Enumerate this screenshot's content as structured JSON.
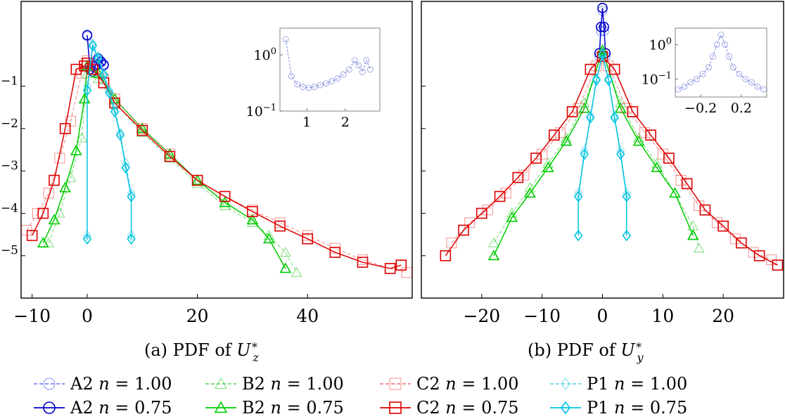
{
  "captions": {
    "a": "(a) PDF of U*z",
    "b": "(b) PDF of U*y"
  },
  "legend": [
    {
      "label": "A2 n = 1.00",
      "color": "#4455ee",
      "marker": "circle",
      "dashed": true
    },
    {
      "label": "B2 n = 1.00",
      "color": "#33cc33",
      "marker": "triangle",
      "dashed": true
    },
    {
      "label": "C2 n = 1.00",
      "color": "#ee5555",
      "marker": "square",
      "dashed": true
    },
    {
      "label": "P1 n = 1.00",
      "color": "#33c4e0",
      "marker": "diamond",
      "dashed": true
    },
    {
      "label": "A2 n = 0.75",
      "color": "#0000cc",
      "marker": "circle",
      "dashed": false
    },
    {
      "label": "B2 n = 0.75",
      "color": "#00cc00",
      "marker": "triangle",
      "dashed": false
    },
    {
      "label": "C2 n = 0.75",
      "color": "#dd0000",
      "marker": "square",
      "dashed": false
    },
    {
      "label": "P1 n = 0.75",
      "color": "#00c4e0",
      "marker": "diamond",
      "dashed": false
    }
  ],
  "chart_data": [
    {
      "type": "line",
      "title": "(a) PDF of U*z",
      "xlabel": "",
      "ylabel": "",
      "xlim": [
        -12,
        59
      ],
      "ylim": [
        1e-06,
        10
      ],
      "yscale": "log",
      "xticks": [
        -10,
        0,
        20,
        40
      ],
      "yticks": [
        1e-05,
        0.0001,
        0.001,
        0.01,
        0.1
      ],
      "ytick_labels": [
        "10^-5",
        "10^-4",
        "10^-3",
        "10^-2",
        "10^-1"
      ],
      "series": [
        {
          "name": "A2 n = 1.00",
          "x": [
            0,
            0.5,
            1,
            1.5,
            2,
            2.5,
            3
          ],
          "y": [
            1.5,
            0.3,
            0.28,
            0.32,
            0.4,
            0.35,
            0.3
          ]
        },
        {
          "name": "A2 n = 0.75",
          "x": [
            0,
            0.5,
            1,
            1.5,
            2,
            2.5,
            3
          ],
          "y": [
            1.6,
            0.25,
            0.22,
            0.3,
            0.45,
            0.38,
            0.32
          ]
        },
        {
          "name": "B2 n = 1.00",
          "x": [
            -7,
            -5,
            -3,
            -1,
            0,
            2,
            5,
            10,
            15,
            20,
            25,
            30,
            33,
            36,
            38
          ],
          "y": [
            2e-05,
            0.0001,
            0.0007,
            0.006,
            0.2,
            0.15,
            0.04,
            0.008,
            0.002,
            0.0005,
            0.00015,
            6e-05,
            3e-05,
            1.2e-05,
            4e-06
          ]
        },
        {
          "name": "B2 n = 0.75",
          "x": [
            -8,
            -6,
            -4,
            -2,
            -0.5,
            0,
            2,
            5,
            10,
            15,
            20,
            25,
            30,
            33,
            36
          ],
          "y": [
            2e-05,
            7e-05,
            0.0004,
            0.003,
            0.05,
            0.3,
            0.2,
            0.05,
            0.01,
            0.0025,
            0.0006,
            0.00018,
            7e-05,
            2.5e-05,
            5e-06
          ]
        },
        {
          "name": "C2 n = 1.00",
          "x": [
            -11,
            -9,
            -7,
            -5,
            -3,
            -1,
            0,
            1,
            3,
            5,
            10,
            15,
            20,
            25,
            30,
            35,
            40,
            45,
            50,
            55,
            58
          ],
          "y": [
            4e-05,
            0.0001,
            0.0003,
            0.002,
            0.015,
            0.2,
            0.4,
            0.3,
            0.15,
            0.05,
            0.01,
            0.0025,
            0.0006,
            0.00025,
            0.00012,
            6e-05,
            3e-05,
            1.5e-05,
            8e-06,
            5e-06,
            4e-06
          ]
        },
        {
          "name": "C2 n = 0.75",
          "x": [
            -10,
            -8,
            -6,
            -4,
            -2,
            -0.5,
            0,
            1,
            3,
            5,
            10,
            15,
            20,
            25,
            30,
            35,
            40,
            45,
            50,
            55,
            57
          ],
          "y": [
            3e-05,
            0.0001,
            0.0006,
            0.01,
            0.25,
            0.3,
            0.35,
            0.25,
            0.12,
            0.04,
            0.009,
            0.0022,
            0.0006,
            0.00025,
            0.00011,
            5e-05,
            2.5e-05,
            1.2e-05,
            7e-06,
            5e-06,
            6e-06
          ]
        },
        {
          "name": "P1 n = 1.00",
          "x": [
            0,
            0,
            1,
            2,
            3,
            4,
            5,
            6,
            7,
            8,
            8
          ],
          "y": [
            3e-05,
            0.1,
            1.0,
            0.5,
            0.2,
            0.08,
            0.03,
            0.008,
            0.0015,
            0.0003,
            3e-05
          ]
        },
        {
          "name": "P1 n = 0.75",
          "x": [
            0,
            0,
            1,
            2,
            3,
            4,
            5,
            6,
            7,
            8,
            8
          ],
          "y": [
            2.5e-05,
            0.08,
            0.9,
            0.45,
            0.18,
            0.07,
            0.025,
            0.007,
            0.0012,
            0.00025,
            2.5e-05
          ]
        }
      ],
      "inset": {
        "xlim": [
          0.3,
          2.9
        ],
        "ylim": [
          0.1,
          3
        ],
        "yscale": "log",
        "xticks": [
          1,
          2
        ],
        "yticks": [
          0.1,
          1
        ],
        "ytick_labels": [
          "10^-1",
          "10^0"
        ],
        "series": {
          "name": "A2",
          "x": [
            0.45,
            0.6,
            0.75,
            0.9,
            1.05,
            1.2,
            1.35,
            1.5,
            1.65,
            1.8,
            1.95,
            2.1,
            2.25,
            2.35,
            2.45,
            2.55,
            2.65
          ],
          "y": [
            1.9,
            0.42,
            0.3,
            0.27,
            0.26,
            0.27,
            0.29,
            0.31,
            0.34,
            0.38,
            0.45,
            0.55,
            0.8,
            0.65,
            0.5,
            0.8,
            0.55
          ]
        }
      }
    },
    {
      "type": "line",
      "title": "(b) PDF of U*y",
      "xlabel": "",
      "ylabel": "",
      "xlim": [
        -30,
        30
      ],
      "ylim": [
        1e-06,
        10
      ],
      "yscale": "log",
      "xticks": [
        -20,
        -10,
        0,
        10,
        20
      ],
      "yticks": [
        1e-05,
        0.0001,
        0.001,
        0.01,
        0.1
      ],
      "series": [
        {
          "name": "A2 n = 1.00",
          "x": [
            -0.5,
            -0.25,
            0,
            0.25,
            0.5
          ],
          "y": [
            0.5,
            2,
            6,
            2,
            0.5
          ]
        },
        {
          "name": "A2 n = 0.75",
          "x": [
            -0.5,
            -0.25,
            0,
            0.25,
            0.5
          ],
          "y": [
            0.6,
            2.5,
            7,
            2.5,
            0.6
          ]
        },
        {
          "name": "B2 n = 1.00",
          "x": [
            -18,
            -15,
            -12,
            -9,
            -6,
            -3,
            0,
            3,
            6,
            9,
            12,
            15,
            16
          ],
          "y": [
            2e-05,
            0.0001,
            0.0004,
            0.0015,
            0.006,
            0.04,
            0.6,
            0.04,
            0.006,
            0.0015,
            0.0003,
            5e-05,
            1.5e-05
          ]
        },
        {
          "name": "B2 n = 0.75",
          "x": [
            -18,
            -15,
            -12,
            -9,
            -6,
            -3,
            0,
            3,
            6,
            9,
            12,
            15
          ],
          "y": [
            1e-05,
            8e-05,
            0.0003,
            0.0012,
            0.005,
            0.03,
            0.7,
            0.03,
            0.005,
            0.0012,
            0.0003,
            3e-05
          ]
        },
        {
          "name": "C2 n = 1.00",
          "x": [
            -25,
            -22,
            -19,
            -16,
            -13,
            -10,
            -7,
            -4,
            -1,
            0,
            1,
            4,
            7,
            10,
            13,
            16,
            19,
            22,
            25,
            28
          ],
          "y": [
            2e-05,
            6e-05,
            0.00012,
            0.0003,
            0.0008,
            0.0025,
            0.008,
            0.03,
            0.3,
            0.5,
            0.3,
            0.03,
            0.008,
            0.0025,
            0.0006,
            0.00015,
            6e-05,
            2.5e-05,
            1.2e-05,
            8e-06
          ]
        },
        {
          "name": "C2 n = 0.75",
          "x": [
            -26,
            -23,
            -20,
            -17,
            -14,
            -11,
            -8,
            -5,
            -2,
            0,
            2,
            5,
            8,
            11,
            14,
            17,
            20,
            23,
            26,
            29
          ],
          "y": [
            1e-05,
            4e-05,
            0.0001,
            0.00025,
            0.0007,
            0.002,
            0.007,
            0.025,
            0.25,
            0.5,
            0.25,
            0.025,
            0.007,
            0.002,
            0.0005,
            0.00012,
            5e-05,
            2e-05,
            1e-05,
            6e-06
          ]
        },
        {
          "name": "P1 n = 1.00",
          "x": [
            -4,
            -4,
            -3,
            -2,
            -1,
            0,
            1,
            2,
            3,
            4,
            4
          ],
          "y": [
            3e-05,
            0.0003,
            0.003,
            0.02,
            0.15,
            0.6,
            0.15,
            0.02,
            0.003,
            0.0003,
            3e-05
          ]
        },
        {
          "name": "P1 n = 0.75",
          "x": [
            -4,
            -4,
            -3,
            -2,
            -1,
            0,
            1,
            2,
            3,
            4,
            4
          ],
          "y": [
            3e-05,
            0.00025,
            0.0025,
            0.018,
            0.14,
            0.55,
            0.14,
            0.018,
            0.0025,
            0.00025,
            3e-05
          ]
        }
      ],
      "inset": {
        "xlim": [
          -0.45,
          0.45
        ],
        "ylim": [
          0.03,
          3
        ],
        "yscale": "log",
        "xticks": [
          -0.2,
          0.2
        ],
        "yticks": [
          0.1,
          1
        ],
        "ytick_labels": [
          "10^-1",
          "10^0"
        ],
        "series": {
          "name": "A2",
          "x": [
            -0.42,
            -0.36,
            -0.3,
            -0.24,
            -0.18,
            -0.12,
            -0.08,
            -0.04,
            0,
            0.04,
            0.08,
            0.12,
            0.18,
            0.24,
            0.3,
            0.36,
            0.42
          ],
          "y": [
            0.05,
            0.06,
            0.08,
            0.1,
            0.14,
            0.22,
            0.45,
            1.0,
            1.9,
            1.0,
            0.45,
            0.22,
            0.14,
            0.1,
            0.08,
            0.06,
            0.05
          ]
        }
      }
    }
  ]
}
